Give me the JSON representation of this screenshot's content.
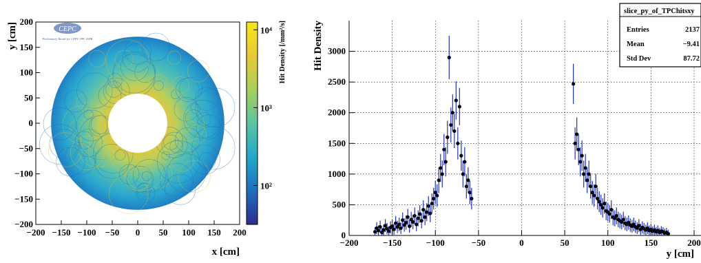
{
  "chart_data": [
    {
      "type": "heatmap",
      "logo_text": "CEPC",
      "logo_subtitle": "Preliminary Result for CEPC TPC DDR",
      "xlabel": "x [cm]",
      "ylabel": "y [cm]",
      "zlabel": "Hit Density [/mm²/s]",
      "xlim": [
        -200,
        200
      ],
      "ylim": [
        -200,
        200
      ],
      "x_ticks": [
        "−200",
        "−150",
        "−100",
        "−50",
        "0",
        "50",
        "100",
        "150",
        "200"
      ],
      "y_ticks": [
        "−200",
        "−150",
        "−100",
        "−50",
        "0",
        "50",
        "100",
        "150",
        "200"
      ],
      "z_scale": "log",
      "z_ticks": [
        "10²",
        "10³",
        "10⁴"
      ],
      "z_exponents": [
        2,
        3,
        4
      ],
      "z_range_log": [
        1.5,
        4.1
      ],
      "inner_radius_cm": 58,
      "outer_radius_cm": 170,
      "colors": [
        "#2c2e8e",
        "#1f6fbf",
        "#20a8c8",
        "#5cc4a0",
        "#a9cf5a",
        "#e8c935",
        "#f7e617"
      ]
    },
    {
      "type": "scatter",
      "xlabel": "y [cm]",
      "ylabel": "Hit Density",
      "xlim": [
        -200,
        200
      ],
      "ylim": [
        0,
        3500
      ],
      "x_ticks": [
        "−200",
        "−150",
        "−100",
        "−50",
        "0",
        "50",
        "100",
        "150",
        "200"
      ],
      "y_ticks": [
        "0",
        "500",
        "1000",
        "1500",
        "2000",
        "2500",
        "3000"
      ],
      "grid": true,
      "stats_box": {
        "title": "slice_py_of_TPChitsxy",
        "rows": [
          {
            "label": "Entries",
            "value": "2137"
          },
          {
            "label": "Mean",
            "value": "−9.41"
          },
          {
            "label": "Std Dev",
            "value": "87.72"
          }
        ]
      },
      "series": [
        {
          "x": [
            -170,
            -168,
            -166,
            -164,
            -162,
            -160,
            -158,
            -156,
            -154,
            -152,
            -150,
            -148,
            -146,
            -144,
            -142,
            -140,
            -138,
            -136,
            -134,
            -132,
            -130,
            -128,
            -126,
            -124,
            -122,
            -120,
            -118,
            -116,
            -114,
            -112,
            -110,
            -108,
            -106,
            -104,
            -102,
            -100,
            -98,
            -96,
            -94,
            -92,
            -90,
            -88,
            -86,
            -84,
            -82,
            -80,
            -78,
            -76,
            -74,
            -72,
            -70,
            -68,
            -66,
            -64,
            -62,
            -60,
            -58,
            60,
            62,
            64,
            66,
            68,
            70,
            72,
            74,
            76,
            78,
            80,
            82,
            84,
            86,
            88,
            90,
            92,
            94,
            96,
            98,
            100,
            102,
            104,
            106,
            108,
            110,
            112,
            114,
            116,
            118,
            120,
            122,
            124,
            126,
            128,
            130,
            132,
            134,
            136,
            138,
            140,
            142,
            144,
            146,
            148,
            150,
            152,
            154,
            156,
            158,
            160,
            162,
            164,
            166,
            168,
            170
          ],
          "y": [
            60,
            120,
            80,
            140,
            50,
            90,
            160,
            110,
            70,
            130,
            150,
            100,
            200,
            140,
            180,
            120,
            250,
            170,
            210,
            300,
            150,
            260,
            220,
            320,
            180,
            280,
            350,
            240,
            420,
            300,
            380,
            480,
            360,
            520,
            600,
            700,
            650,
            900,
            1100,
            1000,
            1400,
            1200,
            1600,
            2900,
            1800,
            2000,
            1700,
            2200,
            1500,
            2100,
            1300,
            1000,
            1200,
            800,
            900,
            700,
            600,
            2470,
            1500,
            1650,
            1400,
            1200,
            1300,
            1000,
            1100,
            900,
            1000,
            800,
            700,
            650,
            800,
            600,
            550,
            500,
            450,
            520,
            400,
            380,
            350,
            420,
            300,
            280,
            320,
            260,
            240,
            220,
            260,
            200,
            180,
            210,
            170,
            150,
            180,
            140,
            120,
            160,
            100,
            130,
            110,
            90,
            120,
            80,
            100,
            70,
            90,
            60,
            80,
            50,
            70,
            60,
            40,
            50,
            30
          ]
        }
      ]
    }
  ]
}
